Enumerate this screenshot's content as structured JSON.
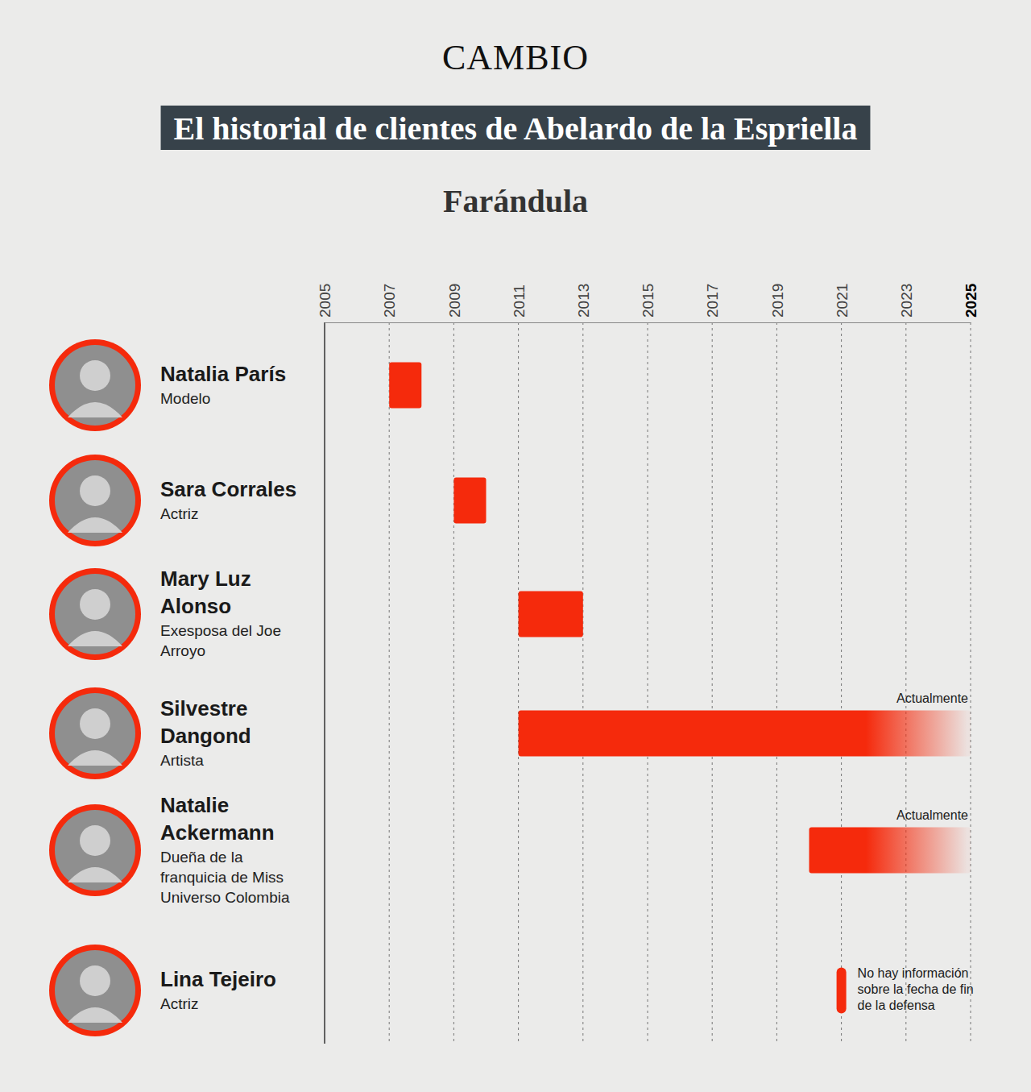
{
  "chart_data": {
    "type": "gantt",
    "header": "CAMBIO",
    "title": "El historial de clientes de Abelardo de la Espriella",
    "subtitle": "Farándula",
    "categories": [
      "Natalia París",
      "Sara Corrales",
      "Mary Luz Alonso",
      "Silvestre Dangond",
      "Natalie Ackermann",
      "Lina Tejeiro"
    ],
    "roles": [
      "Modelo",
      "Actriz",
      "Exesposa del Joe Arroyo",
      "Artista",
      "Dueña de la franquicia de Miss Universo Colombia",
      "Actriz"
    ],
    "start": [
      2007,
      2009,
      2011,
      2011,
      2020,
      2021
    ],
    "end": [
      2008,
      2010,
      2013,
      2025,
      2025,
      null
    ],
    "end_labels": [
      null,
      null,
      null,
      "Actualmente",
      "Actualmente",
      null
    ],
    "notes": [
      null,
      null,
      null,
      null,
      null,
      "No hay información sobre la fecha de fin de la defensa"
    ],
    "xlim": [
      2005,
      2025
    ],
    "xticks": [
      2005,
      2007,
      2009,
      2011,
      2013,
      2015,
      2017,
      2019,
      2021,
      2023,
      2025
    ],
    "grid": true,
    "color": "#f52a0c"
  }
}
